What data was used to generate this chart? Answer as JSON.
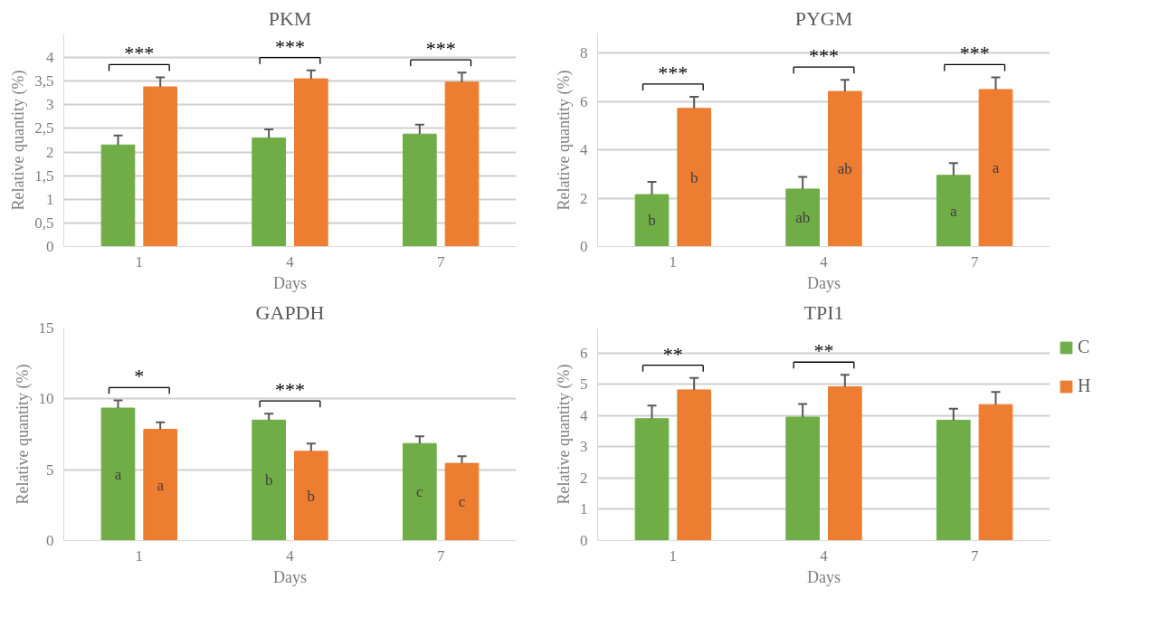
{
  "chart_data": [
    {
      "type": "bar",
      "title": "PKM",
      "xlabel": "Days",
      "ylabel": "Relative quantity (%)",
      "categories": [
        "1",
        "4",
        "7"
      ],
      "series": [
        {
          "color": "#70ad47",
          "values": [
            2.15,
            2.3,
            2.38
          ],
          "errors": [
            [
              2.15,
              2.35
            ],
            [
              2.3,
              2.48
            ],
            [
              2.38,
              2.58
            ]
          ]
        },
        {
          "color": "#ed7d31",
          "values": [
            3.38,
            3.55,
            3.48
          ],
          "errors": [
            [
              3.38,
              3.58
            ],
            [
              3.55,
              3.73
            ],
            [
              3.48,
              3.68
            ]
          ]
        }
      ],
      "ylim": [
        0,
        4.5
      ],
      "yticks": [
        0,
        {
          "value": 0.5,
          "label": "0,5"
        },
        1,
        {
          "value": 1.5,
          "label": "1,5"
        },
        2,
        {
          "value": 2.5,
          "label": "2,5"
        },
        3,
        {
          "value": 3.5,
          "label": "3,5"
        },
        4
      ],
      "annotations": [
        "***",
        "***",
        "***"
      ],
      "grid": "y",
      "legend": false
    },
    {
      "type": "bar",
      "title": "PYGM",
      "xlabel": "Days",
      "ylabel": "Relative quantity (%)",
      "categories": [
        "1",
        "4",
        "7"
      ],
      "series": [
        {
          "color": "#70ad47",
          "values": [
            2.15,
            2.38,
            2.95
          ],
          "errors": [
            [
              2.15,
              2.68
            ],
            [
              2.38,
              2.88
            ],
            [
              2.95,
              3.45
            ]
          ],
          "value_labels": [
            "b",
            "ab",
            "a"
          ]
        },
        {
          "color": "#ed7d31",
          "values": [
            5.72,
            6.42,
            6.5
          ],
          "errors": [
            [
              5.72,
              6.2
            ],
            [
              6.42,
              6.9
            ],
            [
              6.5,
              7.0
            ]
          ],
          "value_labels": [
            "b",
            "ab",
            "a"
          ]
        }
      ],
      "ylim": [
        0,
        8.8
      ],
      "yticks": [
        0,
        2,
        4,
        6,
        8
      ],
      "annotations": [
        "***",
        "***",
        "***"
      ],
      "grid": "y",
      "legend": false
    },
    {
      "type": "bar",
      "title": "GAPDH",
      "xlabel": "Days",
      "ylabel": "Relative quantity (%)",
      "categories": [
        "1",
        "4",
        "7"
      ],
      "series": [
        {
          "color": "#70ad47",
          "values": [
            9.35,
            8.5,
            6.85
          ],
          "errors": [
            [
              9.35,
              9.9
            ],
            [
              8.5,
              8.95
            ],
            [
              6.85,
              7.35
            ]
          ],
          "value_labels": [
            "a",
            "b",
            "c"
          ]
        },
        {
          "color": "#ed7d31",
          "values": [
            7.85,
            6.3,
            5.45
          ],
          "errors": [
            [
              7.85,
              8.35
            ],
            [
              6.3,
              6.85
            ],
            [
              5.45,
              5.95
            ]
          ],
          "value_labels": [
            "a",
            "b",
            "c"
          ]
        }
      ],
      "ylim": [
        0,
        15
      ],
      "yticks": [
        0,
        5,
        10,
        15
      ],
      "annotations": [
        "*",
        "***"
      ],
      "grid": "y",
      "legend": false
    },
    {
      "type": "bar",
      "title": "TPI1",
      "xlabel": "Days",
      "ylabel": "Relative quantity (%)",
      "categories": [
        "1",
        "4",
        "7"
      ],
      "series": [
        {
          "name": "C",
          "color": "#70ad47",
          "values": [
            3.9,
            3.95,
            3.85
          ],
          "errors": [
            [
              3.9,
              4.32
            ],
            [
              3.95,
              4.37
            ],
            [
              3.85,
              4.22
            ]
          ]
        },
        {
          "name": "H",
          "color": "#ed7d31",
          "values": [
            4.82,
            4.92,
            4.35
          ],
          "errors": [
            [
              4.82,
              5.2
            ],
            [
              4.92,
              5.3
            ],
            [
              4.35,
              4.75
            ]
          ]
        }
      ],
      "ylim": [
        0,
        6.8
      ],
      "yticks": [
        0,
        1,
        2,
        3,
        4,
        5,
        6
      ],
      "annotations": [
        "**",
        "**"
      ],
      "grid": "y",
      "legend": "right"
    }
  ]
}
